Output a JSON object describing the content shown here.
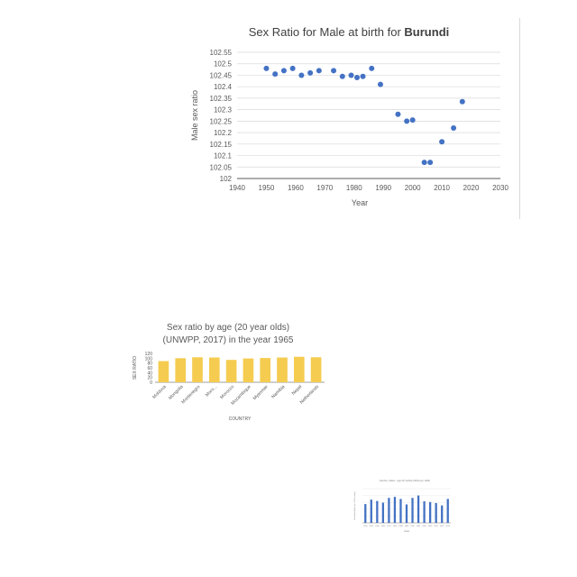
{
  "chart_data": [
    {
      "type": "scatter",
      "title": "Sex Ratio for Male at birth for ",
      "title_bold": "Burundi",
      "xlabel": "Year",
      "ylabel": "Male sex ratio",
      "xlim": [
        1940,
        2030
      ],
      "ylim": [
        102,
        102.55
      ],
      "xticks": [
        "1940",
        "1950",
        "1960",
        "1970",
        "1980",
        "1990",
        "2000",
        "2010",
        "2020",
        "2030"
      ],
      "yticks": [
        "102",
        "102.05",
        "102.1",
        "102.15",
        "102.2",
        "102.25",
        "102.3",
        "102.35",
        "102.4",
        "102.45",
        "102.5",
        "102.55"
      ],
      "grid": true,
      "color": "#4472c4",
      "points": [
        {
          "x": 1950,
          "y": 102.48
        },
        {
          "x": 1953,
          "y": 102.455
        },
        {
          "x": 1956,
          "y": 102.47
        },
        {
          "x": 1959,
          "y": 102.48
        },
        {
          "x": 1962,
          "y": 102.45
        },
        {
          "x": 1965,
          "y": 102.46
        },
        {
          "x": 1968,
          "y": 102.47
        },
        {
          "x": 1973,
          "y": 102.47
        },
        {
          "x": 1976,
          "y": 102.445
        },
        {
          "x": 1979,
          "y": 102.45
        },
        {
          "x": 1981,
          "y": 102.44
        },
        {
          "x": 1983,
          "y": 102.445
        },
        {
          "x": 1986,
          "y": 102.48
        },
        {
          "x": 1989,
          "y": 102.41
        },
        {
          "x": 1995,
          "y": 102.28
        },
        {
          "x": 1998,
          "y": 102.25
        },
        {
          "x": 2000,
          "y": 102.255
        },
        {
          "x": 2004,
          "y": 102.07
        },
        {
          "x": 2006,
          "y": 102.07
        },
        {
          "x": 2010,
          "y": 102.16
        },
        {
          "x": 2014,
          "y": 102.22
        },
        {
          "x": 2017,
          "y": 102.335
        }
      ]
    },
    {
      "type": "bar",
      "title_line1": "Sex ratio by age (20 year olds)",
      "title_line2": "(UNWPP, 2017) in the year 1965",
      "xlabel": "COUNTRY",
      "ylabel": "SEX RATIO",
      "ylim": [
        0,
        120
      ],
      "yticks": [
        "0",
        "20",
        "40",
        "60",
        "80",
        "100",
        "120"
      ],
      "color": "#f5cc50",
      "categories": [
        "Moldova",
        "Mongolia",
        "Montenegro",
        "Moro...",
        "Morocco",
        "Mozambique",
        "Myanmar",
        "Namibia",
        "Nepal",
        "Netherlands"
      ],
      "values": [
        88,
        100,
        104,
        103,
        93,
        99,
        101,
        103,
        106,
        104
      ]
    },
    {
      "type": "bar",
      "title": "Zambia - Males - Age 20: Fertility (Births per 1000)",
      "xlabel": "Years",
      "ylabel": "Sex Ratio (Males per 100 Females)",
      "color": "#4472c4",
      "ylim": [
        0,
        10
      ],
      "categories": [
        "1950",
        "1955",
        "1960",
        "1965",
        "1970",
        "1975",
        "1980",
        "1985",
        "1990",
        "1995",
        "2000",
        "2005",
        "2010",
        "2015",
        "2020"
      ],
      "values": [
        5.5,
        6.8,
        6.4,
        5.9,
        7.3,
        7.6,
        7.0,
        5.4,
        7.3,
        8.0,
        6.3,
        6.1,
        5.8,
        5.1,
        7.0
      ]
    }
  ]
}
